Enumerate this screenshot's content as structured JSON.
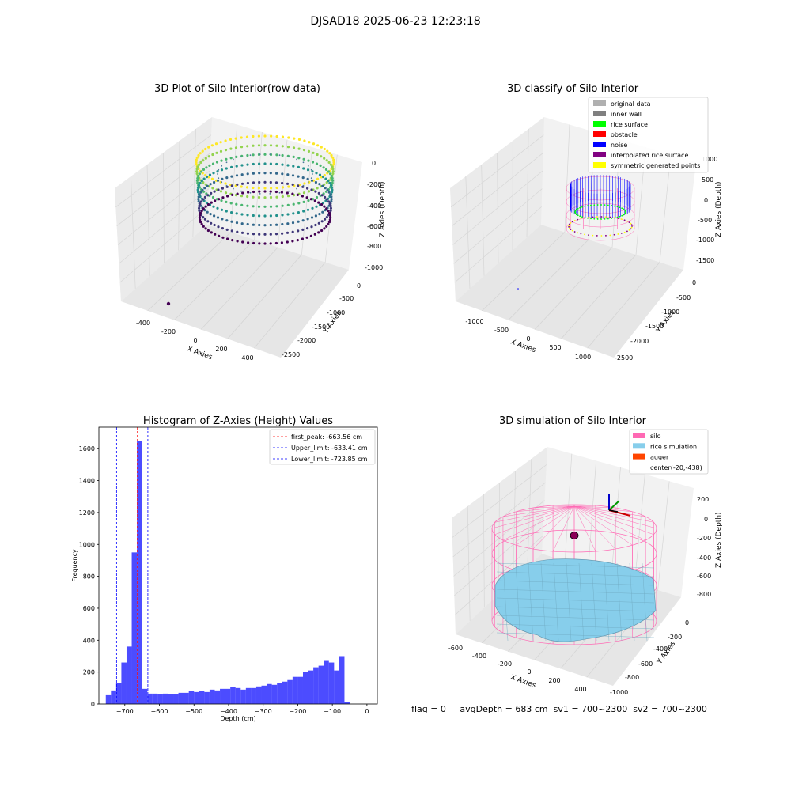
{
  "suptitle": "DJSAD18 2025-06-23 12:23:18",
  "status_line": "flag = 0     avgDepth = 683 cm  sv1 = 700~2300  sv2 = 700~2300",
  "panels": {
    "raw": {
      "title": "3D Plot of Silo Interior(row data)",
      "xlabel": "X Axies",
      "ylabel": "Y Axies",
      "zlabel": "Z Axies (Depth)",
      "xticks": [
        "-400",
        "-200",
        "0",
        "200",
        "400"
      ],
      "yticks": [
        "0",
        "-500",
        "-1000",
        "-1500",
        "-2000",
        "-2500"
      ],
      "zticks": [
        "0",
        "-200",
        "-400",
        "-600",
        "-800",
        "-1000"
      ]
    },
    "classify": {
      "title": "3D classify of Silo Interior",
      "xlabel": "X Axies",
      "ylabel": "Y Axies",
      "zlabel": "Z Axies (Depth)",
      "xticks": [
        "-1000",
        "-500",
        "0",
        "500",
        "1000"
      ],
      "yticks": [
        "0",
        "-500",
        "-1000",
        "-1500",
        "-2000",
        "-2500"
      ],
      "zticks": [
        "1000",
        "500",
        "0",
        "-500",
        "-1000",
        "-1500"
      ],
      "legend": [
        {
          "label": "original data",
          "color": "#b0b0b0"
        },
        {
          "label": "inner wall",
          "color": "#808080"
        },
        {
          "label": "rice surface",
          "color": "#00ff00"
        },
        {
          "label": "obstacle",
          "color": "#ff0000"
        },
        {
          "label": "noise",
          "color": "#0000ff"
        },
        {
          "label": "interpolated rice surface",
          "color": "#800080"
        },
        {
          "label": "symmetric generated points",
          "color": "#ffff00"
        }
      ]
    },
    "simulation": {
      "title": "3D simulation of Silo Interior",
      "xlabel": "X Axies",
      "ylabel": "Y Axies",
      "zlabel": "Z Axies (Depth)",
      "xticks": [
        "-600",
        "-400",
        "-200",
        "0",
        "200",
        "400"
      ],
      "yticks": [
        "0",
        "-200",
        "-400",
        "-600",
        "-800",
        "-1000"
      ],
      "zticks": [
        "200",
        "0",
        "-200",
        "-400",
        "-600",
        "-800"
      ],
      "legend": [
        {
          "label": "silo",
          "color": "#ff69b4"
        },
        {
          "label": "rice simulation",
          "color": "#87ceeb"
        },
        {
          "label": "auger",
          "color": "#ff4500"
        },
        {
          "label": "center(-20,-438)",
          "color": ""
        }
      ]
    }
  },
  "chart_data": {
    "type": "bar",
    "title": "Histogram of Z-Axies (Height) Values",
    "xlabel": "Depth (cm)",
    "ylabel": "Frequency",
    "xlim": [
      -775,
      30
    ],
    "ylim": [
      0,
      1735
    ],
    "xticks": [
      -700,
      -600,
      -500,
      -400,
      -300,
      -200,
      -100,
      0
    ],
    "yticks": [
      0,
      200,
      400,
      600,
      800,
      1000,
      1200,
      1400,
      1600
    ],
    "bar_color": "#0000ff",
    "bin_width": 15,
    "bins_left": [
      -755,
      -740,
      -725,
      -710,
      -695,
      -680,
      -665,
      -650,
      -635,
      -620,
      -605,
      -590,
      -575,
      -560,
      -545,
      -530,
      -515,
      -500,
      -485,
      -470,
      -455,
      -440,
      -425,
      -410,
      -395,
      -380,
      -365,
      -350,
      -335,
      -320,
      -305,
      -290,
      -275,
      -260,
      -245,
      -230,
      -215,
      -200,
      -185,
      -170,
      -155,
      -140,
      -125,
      -110,
      -95,
      -80,
      -65,
      -50,
      -35
    ],
    "counts": [
      55,
      85,
      130,
      260,
      360,
      950,
      1650,
      95,
      65,
      65,
      60,
      65,
      60,
      60,
      70,
      70,
      80,
      75,
      80,
      75,
      90,
      85,
      95,
      95,
      105,
      100,
      90,
      100,
      100,
      110,
      115,
      125,
      120,
      130,
      140,
      150,
      170,
      170,
      200,
      210,
      230,
      240,
      270,
      260,
      210,
      300,
      10,
      0,
      0
    ],
    "lines": [
      {
        "label": "first_peak: -663.56 cm",
        "x": -663.56,
        "color": "#ff0000"
      },
      {
        "label": "Upper_limit: -633.41 cm",
        "x": -633.41,
        "color": "#0000ff"
      },
      {
        "label": "Lower_limit: -723.85 cm",
        "x": -723.85,
        "color": "#0000ff"
      }
    ],
    "legend_position": "upper right"
  }
}
